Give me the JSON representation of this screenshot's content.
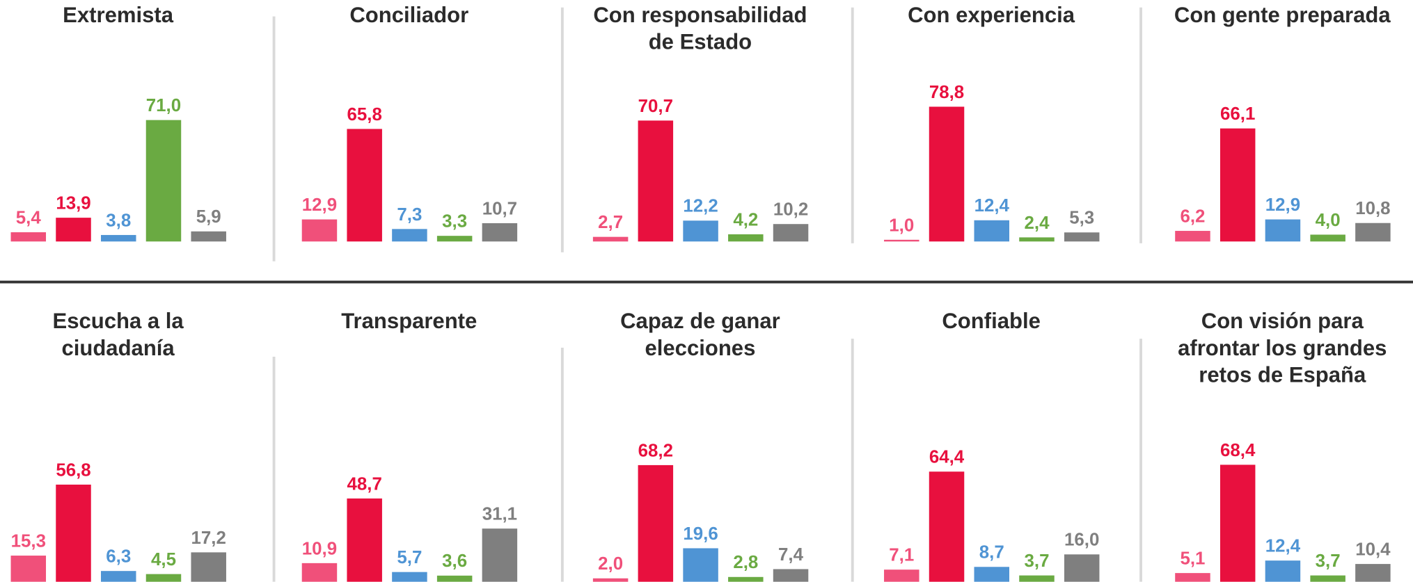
{
  "chart_data": [
    {
      "type": "bar",
      "title": [
        "Extremista"
      ],
      "values": [
        5.4,
        13.9,
        3.8,
        71.0,
        5.9
      ],
      "value_labels": [
        "5,4",
        "13,9",
        "3,8",
        "71,0",
        "5,9"
      ],
      "colors": [
        "#f0507a",
        "#e8103e",
        "#4f94d4",
        "#6aaa42",
        "#7f7f7f"
      ]
    },
    {
      "type": "bar",
      "title": [
        "Conciliador"
      ],
      "values": [
        12.9,
        65.8,
        7.3,
        3.3,
        10.7
      ],
      "value_labels": [
        "12,9",
        "65,8",
        "7,3",
        "3,3",
        "10,7"
      ],
      "colors": [
        "#f0507a",
        "#e8103e",
        "#4f94d4",
        "#6aaa42",
        "#7f7f7f"
      ]
    },
    {
      "type": "bar",
      "title": [
        "Con responsabilidad",
        "de Estado"
      ],
      "values": [
        2.7,
        70.7,
        12.2,
        4.2,
        10.2
      ],
      "value_labels": [
        "2,7",
        "70,7",
        "12,2",
        "4,2",
        "10,2"
      ],
      "colors": [
        "#f0507a",
        "#e8103e",
        "#4f94d4",
        "#6aaa42",
        "#7f7f7f"
      ]
    },
    {
      "type": "bar",
      "title": [
        "Con experiencia"
      ],
      "values": [
        1.0,
        78.8,
        12.4,
        2.4,
        5.3
      ],
      "value_labels": [
        "1,0",
        "78,8",
        "12,4",
        "2,4",
        "5,3"
      ],
      "colors": [
        "#f0507a",
        "#e8103e",
        "#4f94d4",
        "#6aaa42",
        "#7f7f7f"
      ]
    },
    {
      "type": "bar",
      "title": [
        "Con gente preparada"
      ],
      "values": [
        6.2,
        66.1,
        12.9,
        4.0,
        10.8
      ],
      "value_labels": [
        "6,2",
        "66,1",
        "12,9",
        "4,0",
        "10,8"
      ],
      "colors": [
        "#f0507a",
        "#e8103e",
        "#4f94d4",
        "#6aaa42",
        "#7f7f7f"
      ]
    },
    {
      "type": "bar",
      "title": [
        "Escucha a la",
        "ciudadanía"
      ],
      "values": [
        15.3,
        56.8,
        6.3,
        4.5,
        17.2
      ],
      "value_labels": [
        "15,3",
        "56,8",
        "6,3",
        "4,5",
        "17,2"
      ],
      "colors": [
        "#f0507a",
        "#e8103e",
        "#4f94d4",
        "#6aaa42",
        "#7f7f7f"
      ]
    },
    {
      "type": "bar",
      "title": [
        "Transparente"
      ],
      "values": [
        10.9,
        48.7,
        5.7,
        3.6,
        31.1
      ],
      "value_labels": [
        "10,9",
        "48,7",
        "5,7",
        "3,6",
        "31,1"
      ],
      "colors": [
        "#f0507a",
        "#e8103e",
        "#4f94d4",
        "#6aaa42",
        "#7f7f7f"
      ]
    },
    {
      "type": "bar",
      "title": [
        "Capaz de ganar",
        "elecciones"
      ],
      "values": [
        2.0,
        68.2,
        19.6,
        2.8,
        7.4
      ],
      "value_labels": [
        "2,0",
        "68,2",
        "19,6",
        "2,8",
        "7,4"
      ],
      "colors": [
        "#f0507a",
        "#e8103e",
        "#4f94d4",
        "#6aaa42",
        "#7f7f7f"
      ]
    },
    {
      "type": "bar",
      "title": [
        "Confiable"
      ],
      "values": [
        7.1,
        64.4,
        8.7,
        3.7,
        16.0
      ],
      "value_labels": [
        "7,1",
        "64,4",
        "8,7",
        "3,7",
        "16,0"
      ],
      "colors": [
        "#f0507a",
        "#e8103e",
        "#4f94d4",
        "#6aaa42",
        "#7f7f7f"
      ]
    },
    {
      "type": "bar",
      "title": [
        "Con visión para",
        "afrontar los grandes",
        "retos de España"
      ],
      "values": [
        5.1,
        68.4,
        12.4,
        3.7,
        10.4
      ],
      "value_labels": [
        "5,1",
        "68,4",
        "12,4",
        "3,7",
        "10,4"
      ],
      "colors": [
        "#f0507a",
        "#e8103e",
        "#4f94d4",
        "#6aaa42",
        "#7f7f7f"
      ]
    }
  ]
}
